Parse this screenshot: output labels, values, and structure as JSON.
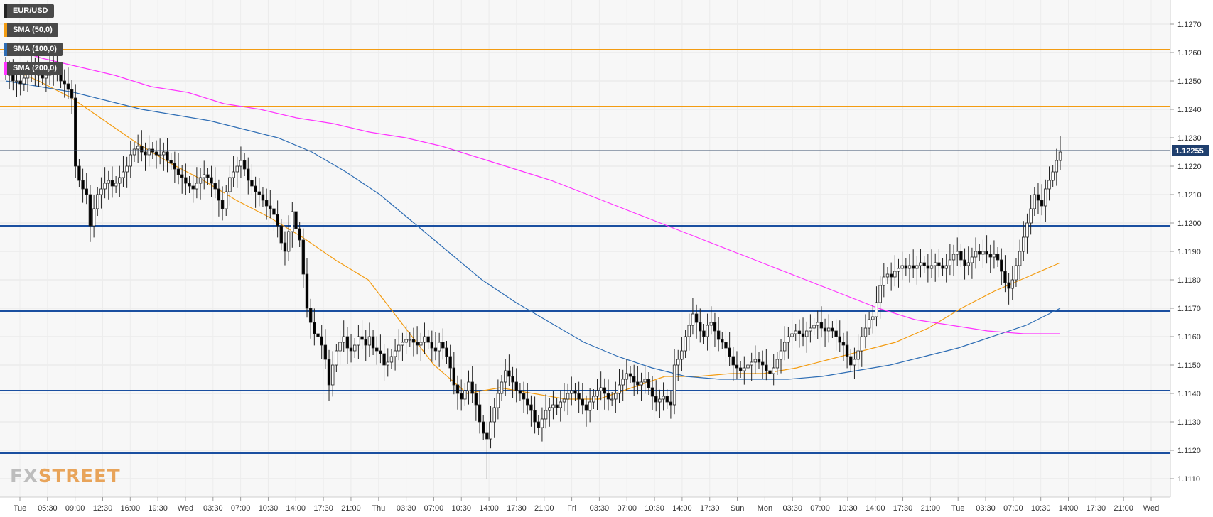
{
  "symbol": "EUR/USD",
  "legend": [
    {
      "label": "SMA (50,0)",
      "color": "#f39c12"
    },
    {
      "label": "SMA (100,0)",
      "color": "#2e6db4"
    },
    {
      "label": "SMA (200,0)",
      "color": "#ff33ff"
    }
  ],
  "watermark": {
    "fx": "FX",
    "street": "STREET"
  },
  "chart_data": {
    "type": "candlestick",
    "title": "EUR/USD",
    "ylim": [
      1.11,
      1.1275
    ],
    "y_ticks": [
      "1.1270",
      "1.1260",
      "1.1250",
      "1.1240",
      "1.1230",
      "1.1220",
      "1.1210",
      "1.1200",
      "1.1190",
      "1.1180",
      "1.1170",
      "1.1160",
      "1.1150",
      "1.1140",
      "1.1130",
      "1.1120",
      "1.1110"
    ],
    "x_ticks": [
      "Tue",
      "05:30",
      "09:00",
      "12:30",
      "16:00",
      "19:30",
      "Wed",
      "03:30",
      "07:00",
      "10:30",
      "14:00",
      "17:30",
      "21:00",
      "Thu",
      "03:30",
      "07:00",
      "10:30",
      "14:00",
      "17:30",
      "21:00",
      "Fri",
      "03:30",
      "07:00",
      "10:30",
      "14:00",
      "17:30",
      "Sun",
      "Mon",
      "03:30",
      "07:00",
      "10:30",
      "14:00",
      "17:30",
      "21:00",
      "Tue",
      "03:30",
      "07:00",
      "10:30",
      "14:00",
      "17:30",
      "21:00",
      "Wed"
    ],
    "last_price": {
      "value": 1.12255,
      "label": "1.12255",
      "color": "#1f3f6e"
    },
    "horizontal_levels": [
      {
        "value": 1.1261,
        "color": "#f39c12"
      },
      {
        "value": 1.1241,
        "color": "#f39c12"
      },
      {
        "value": 1.1199,
        "color": "#1a4fa0"
      },
      {
        "value": 1.1169,
        "color": "#1a4fa0"
      },
      {
        "value": 1.1141,
        "color": "#1a4fa0"
      },
      {
        "value": 1.1119,
        "color": "#1a4fa0"
      }
    ],
    "candles": {
      "bull_color": "#ffffff",
      "bear_color": "#000000",
      "closes": [
        1.1253,
        1.1252,
        1.125,
        1.125,
        1.1249,
        1.1251,
        1.1253,
        1.1255,
        1.1254,
        1.1252,
        1.1251,
        1.1252,
        1.1254,
        1.1256,
        1.1254,
        1.125,
        1.1249,
        1.1247,
        1.1244,
        1.122,
        1.1215,
        1.1212,
        1.121,
        1.1199,
        1.1205,
        1.121,
        1.1212,
        1.1214,
        1.1215,
        1.1213,
        1.1214,
        1.1216,
        1.1218,
        1.122,
        1.1224,
        1.1226,
        1.1227,
        1.1225,
        1.1224,
        1.1226,
        1.1225,
        1.1224,
        1.1224,
        1.1225,
        1.1222,
        1.1221,
        1.1219,
        1.1217,
        1.1216,
        1.1214,
        1.1213,
        1.1212,
        1.1214,
        1.1216,
        1.1217,
        1.1216,
        1.1214,
        1.1212,
        1.1208,
        1.1205,
        1.1211,
        1.1216,
        1.1218,
        1.122,
        1.1222,
        1.1219,
        1.1215,
        1.1213,
        1.1211,
        1.121,
        1.1208,
        1.1206,
        1.1205,
        1.1203,
        1.1199,
        1.1193,
        1.119,
        1.1197,
        1.1204,
        1.1198,
        1.1194,
        1.1182,
        1.117,
        1.1165,
        1.1161,
        1.116,
        1.1157,
        1.1152,
        1.1143,
        1.115,
        1.1155,
        1.1158,
        1.116,
        1.1156,
        1.1155,
        1.1157,
        1.116,
        1.1159,
        1.1157,
        1.116,
        1.1156,
        1.1155,
        1.1154,
        1.115,
        1.1151,
        1.1153,
        1.1155,
        1.1157,
        1.1158,
        1.1159,
        1.1159,
        1.1158,
        1.1157,
        1.1158,
        1.116,
        1.1158,
        1.1156,
        1.1155,
        1.1158,
        1.1156,
        1.1153,
        1.1149,
        1.1143,
        1.114,
        1.1138,
        1.1141,
        1.1144,
        1.114,
        1.1136,
        1.113,
        1.1126,
        1.1124,
        1.113,
        1.1135,
        1.114,
        1.1144,
        1.1148,
        1.1146,
        1.1144,
        1.1141,
        1.114,
        1.1138,
        1.1136,
        1.1134,
        1.113,
        1.1128,
        1.1131,
        1.1134,
        1.1135,
        1.1136,
        1.1135,
        1.1137,
        1.1138,
        1.114,
        1.1141,
        1.114,
        1.1138,
        1.1136,
        1.1134,
        1.1137,
        1.1139,
        1.1141,
        1.1142,
        1.114,
        1.1138,
        1.1138,
        1.114,
        1.1143,
        1.1145,
        1.1147,
        1.1146,
        1.1144,
        1.1143,
        1.1144,
        1.1145,
        1.1142,
        1.1139,
        1.1137,
        1.1138,
        1.1139,
        1.1137,
        1.1136,
        1.115,
        1.1152,
        1.1155,
        1.116,
        1.1164,
        1.1168,
        1.1165,
        1.1162,
        1.116,
        1.1164,
        1.1165,
        1.1162,
        1.1159,
        1.1158,
        1.1156,
        1.1153,
        1.115,
        1.1149,
        1.1148,
        1.1149,
        1.115,
        1.1151,
        1.1152,
        1.1151,
        1.115,
        1.1148,
        1.1147,
        1.1149,
        1.1152,
        1.1155,
        1.1158,
        1.116,
        1.1161,
        1.1162,
        1.1161,
        1.116,
        1.1162,
        1.1163,
        1.1164,
        1.1165,
        1.1163,
        1.1162,
        1.1163,
        1.1162,
        1.116,
        1.1158,
        1.1157,
        1.1153,
        1.115,
        1.1152,
        1.1155,
        1.116,
        1.1163,
        1.1166,
        1.1167,
        1.1172,
        1.1178,
        1.1181,
        1.1182,
        1.1181,
        1.1183,
        1.1184,
        1.1185,
        1.1184,
        1.1185,
        1.1184,
        1.1185,
        1.1186,
        1.1185,
        1.1184,
        1.1185,
        1.1186,
        1.1185,
        1.1184,
        1.1185,
        1.1187,
        1.1189,
        1.119,
        1.1187,
        1.1185,
        1.1186,
        1.1188,
        1.119,
        1.1189,
        1.119,
        1.1189,
        1.1188,
        1.1189,
        1.1187,
        1.1183,
        1.1179,
        1.1177,
        1.118,
        1.1185,
        1.119,
        1.1195,
        1.12,
        1.1205,
        1.121,
        1.1208,
        1.1206,
        1.1212,
        1.1215,
        1.1218,
        1.1222,
        1.1225
      ],
      "wick_extremes": {
        "high": 1.1263,
        "low": 1.111
      }
    },
    "series": [
      {
        "name": "SMA (50,0)",
        "color": "#f39c12",
        "values": [
          1.1255,
          1.125,
          1.1244,
          1.1236,
          1.1228,
          1.1221,
          1.1215,
          1.1208,
          1.1202,
          1.1195,
          1.1187,
          1.118,
          1.1165,
          1.115,
          1.114,
          1.1142,
          1.114,
          1.1138,
          1.1138,
          1.1142,
          1.1146,
          1.1146,
          1.1147,
          1.1147,
          1.1149,
          1.1152,
          1.1155,
          1.1158,
          1.1163,
          1.117,
          1.1176,
          1.1181,
          1.1186
        ]
      },
      {
        "name": "SMA (100,0)",
        "color": "#2e6db4",
        "values": [
          1.125,
          1.1248,
          1.1246,
          1.1243,
          1.124,
          1.1238,
          1.1236,
          1.1233,
          1.123,
          1.1225,
          1.1218,
          1.121,
          1.12,
          1.119,
          1.118,
          1.1172,
          1.1165,
          1.1158,
          1.1153,
          1.1149,
          1.1146,
          1.1145,
          1.1145,
          1.1145,
          1.1146,
          1.1148,
          1.115,
          1.1153,
          1.1156,
          1.116,
          1.1164,
          1.117
        ]
      },
      {
        "name": "SMA (200,0)",
        "color": "#ff33ff",
        "values": [
          1.1262,
          1.1258,
          1.1255,
          1.1252,
          1.1248,
          1.1246,
          1.1242,
          1.124,
          1.1237,
          1.1235,
          1.1232,
          1.123,
          1.1227,
          1.1223,
          1.1219,
          1.1215,
          1.121,
          1.1205,
          1.12,
          1.1195,
          1.119,
          1.1185,
          1.118,
          1.1175,
          1.117,
          1.1166,
          1.1164,
          1.1162,
          1.1161,
          1.1161
        ]
      }
    ]
  }
}
